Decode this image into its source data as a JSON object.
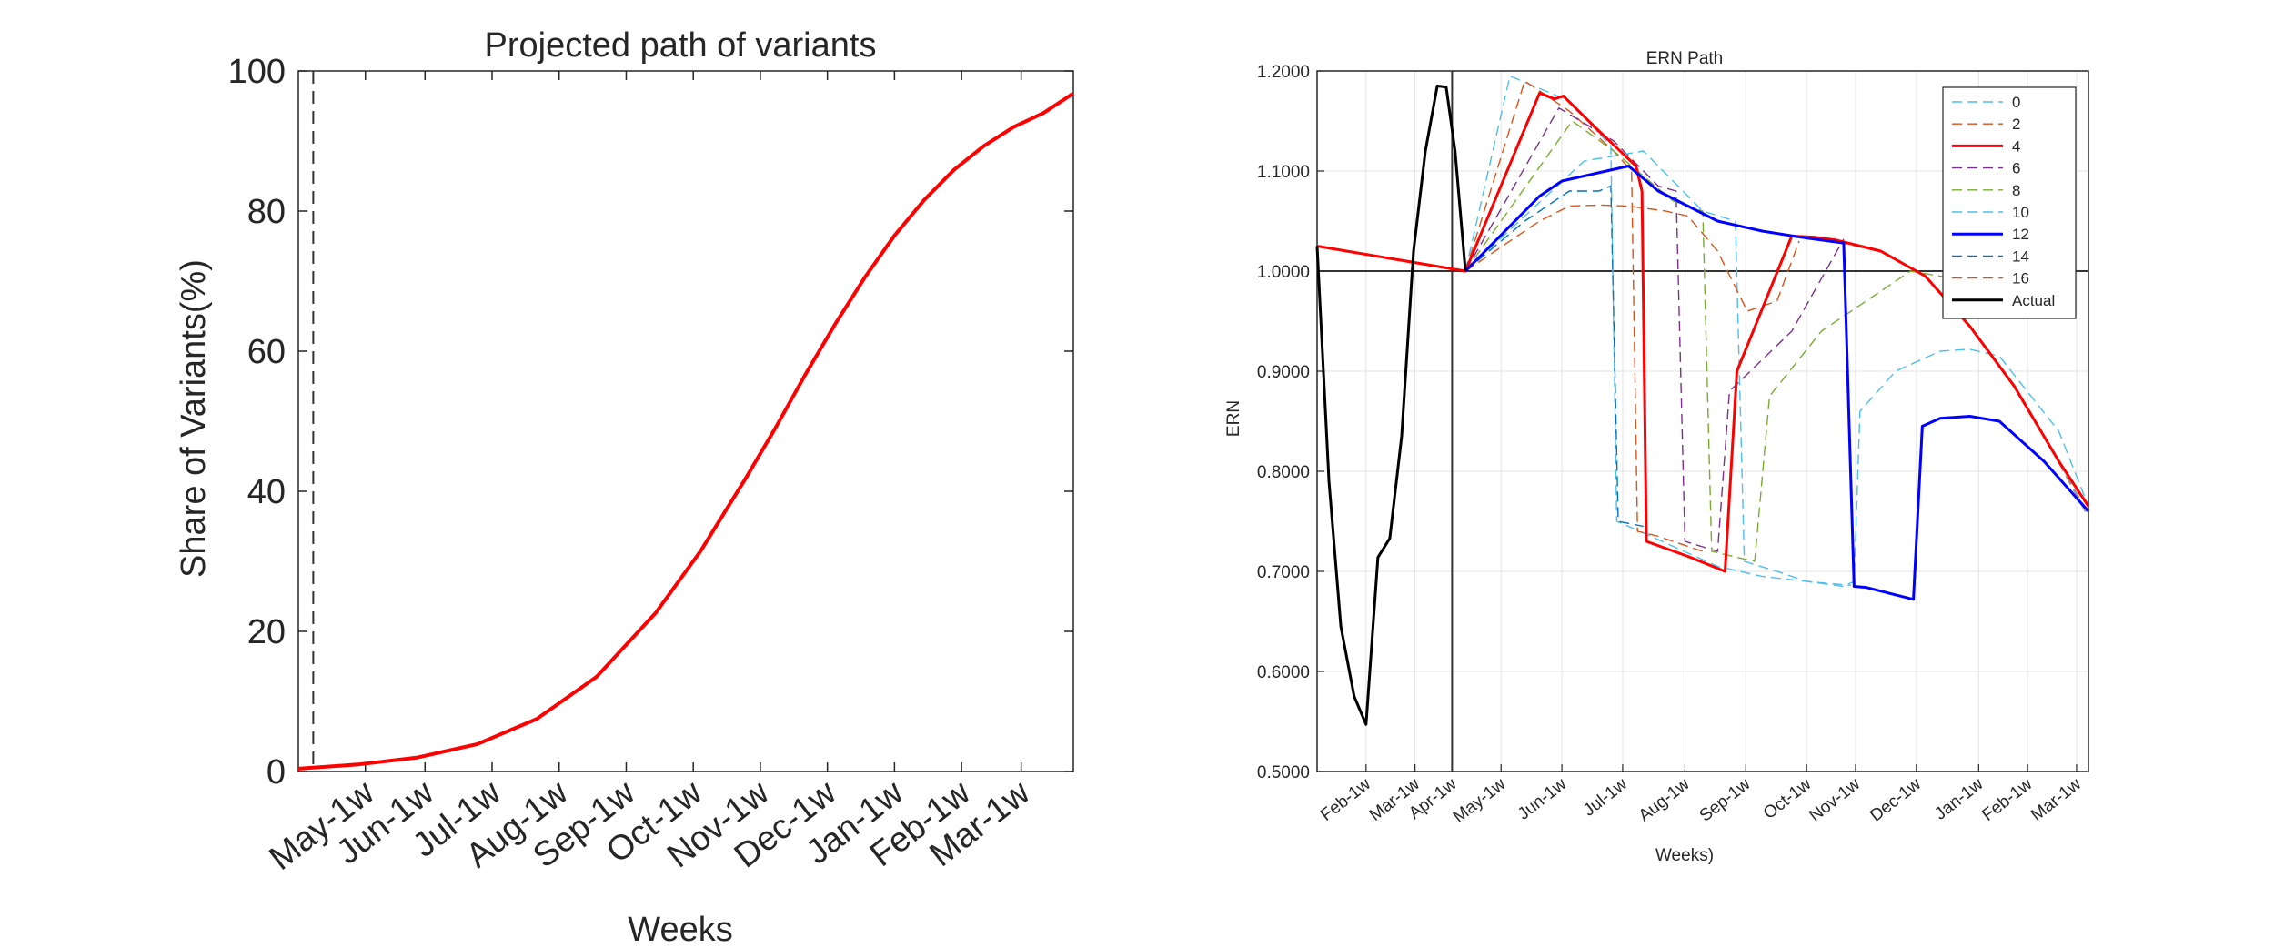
{
  "chart_data": [
    {
      "type": "line",
      "title": "Projected path of variants",
      "xlabel": "Weeks",
      "ylabel": "Share of Variants(%)",
      "ylim": [
        0,
        100
      ],
      "yticks": [
        0,
        20,
        40,
        60,
        80,
        100
      ],
      "xlim": [
        0,
        52
      ],
      "xticks": [
        {
          "x": 4.5,
          "label": "May-1w"
        },
        {
          "x": 8.5,
          "label": "Jun-1w"
        },
        {
          "x": 13,
          "label": "Jul-1w"
        },
        {
          "x": 17.5,
          "label": "Aug-1w"
        },
        {
          "x": 22,
          "label": "Sep-1w"
        },
        {
          "x": 26.5,
          "label": "Oct-1w"
        },
        {
          "x": 31,
          "label": "Nov-1w"
        },
        {
          "x": 35.5,
          "label": "Dec-1w"
        },
        {
          "x": 40,
          "label": "Jan-1w"
        },
        {
          "x": 44.5,
          "label": "Feb-1w"
        },
        {
          "x": 48.5,
          "label": "Mar-1w"
        }
      ],
      "vline_dashed_x": 1,
      "grid": false,
      "series": [
        {
          "color": "#ff0000",
          "x": [
            0,
            4,
            8,
            12,
            16,
            20,
            24,
            27,
            30,
            32,
            34,
            36,
            38,
            40,
            42,
            44,
            46,
            48,
            50,
            52
          ],
          "y": [
            0.4,
            1.0,
            2.0,
            3.9,
            7.5,
            13.5,
            22.7,
            31.5,
            41.8,
            49.0,
            56.6,
            63.8,
            70.5,
            76.5,
            81.6,
            85.9,
            89.3,
            92.0,
            94.0,
            96.8
          ]
        }
      ]
    },
    {
      "type": "line",
      "title": "ERN Path",
      "xlabel": "Weeks)",
      "ylabel": "ERN",
      "ylim": [
        0.5,
        1.2
      ],
      "yticks": [
        "0.5000",
        "0.6000",
        "0.7000",
        "0.8000",
        "0.9000",
        "1.0000",
        "1.1000",
        "1.2000"
      ],
      "xlim": [
        0,
        52
      ],
      "xticks": [
        {
          "x": 3.3,
          "label": "Feb-1w"
        },
        {
          "x": 6.6,
          "label": "Mar-1w"
        },
        {
          "x": 9.1,
          "label": "Apr-1w"
        },
        {
          "x": 12.4,
          "label": "May-1w"
        },
        {
          "x": 16.5,
          "label": "Jun-1w"
        },
        {
          "x": 20.6,
          "label": "Jul-1w"
        },
        {
          "x": 24.8,
          "label": "Aug-1w"
        },
        {
          "x": 28.9,
          "label": "Sep-1w"
        },
        {
          "x": 33.0,
          "label": "Oct-1w"
        },
        {
          "x": 36.3,
          "label": "Nov-1w"
        },
        {
          "x": 40.4,
          "label": "Dec-1w"
        },
        {
          "x": 44.6,
          "label": "Jan-1w"
        },
        {
          "x": 47.9,
          "label": "Feb-1w"
        },
        {
          "x": 51.2,
          "label": "Mar-1w"
        }
      ],
      "hline_y": 1.0,
      "vline_x": 9.1,
      "grid": true,
      "legend_position": "top-right",
      "series": [
        {
          "name": "0",
          "color": "#4dbeee",
          "style": "dashed",
          "x": [
            10,
            13,
            17,
            19.8,
            20.2,
            21,
            24,
            27,
            30,
            33,
            36
          ],
          "y": [
            1.0,
            1.195,
            1.17,
            1.125,
            0.75,
            0.745,
            0.725,
            0.705,
            0.695,
            0.69,
            0.686
          ]
        },
        {
          "name": "2",
          "color": "#d95319",
          "style": "dashed",
          "x": [
            10,
            14,
            17,
            20,
            21.2,
            21.6,
            23,
            26
          ],
          "y": [
            1.0,
            1.19,
            1.16,
            1.12,
            1.1,
            0.74,
            0.735,
            0.72
          ]
        },
        {
          "name": "4",
          "color": "#ff0000",
          "style": "solid",
          "width": 3,
          "x": [
            0,
            10,
            15,
            16,
            16.6,
            19,
            21.5,
            21.9,
            22.2,
            25,
            27.5,
            28.3,
            32,
            33.5,
            35,
            38,
            41,
            44,
            47,
            50,
            52
          ],
          "y": [
            1.025,
            1.0,
            1.178,
            1.172,
            1.175,
            1.14,
            1.105,
            1.08,
            0.73,
            0.715,
            0.7,
            0.9,
            1.035,
            1.034,
            1.031,
            1.02,
            0.995,
            0.945,
            0.885,
            0.81,
            0.765
          ]
        },
        {
          "name": "6",
          "color": "#7e2f8e",
          "style": "dashed",
          "x": [
            10,
            16.3,
            20,
            23,
            24.2,
            24.8,
            27,
            27.8,
            32,
            35.5
          ],
          "y": [
            1.0,
            1.163,
            1.13,
            1.085,
            1.08,
            0.73,
            0.72,
            0.88,
            0.94,
            1.032
          ]
        },
        {
          "name": "8",
          "color": "#77ac30",
          "style": "dashed",
          "x": [
            10,
            17.2,
            20,
            24,
            26,
            26.6,
            29.5,
            30.5,
            34,
            40,
            44
          ],
          "y": [
            1.0,
            1.15,
            1.12,
            1.07,
            1.06,
            0.72,
            0.71,
            0.875,
            0.94,
            1.0,
            0.99
          ]
        },
        {
          "name": "10",
          "color": "#4dbeee",
          "style": "dashed",
          "x": [
            10,
            18,
            22,
            26,
            28.2,
            28.8,
            31,
            33,
            35.5,
            36.2,
            36.6,
            39,
            42,
            44,
            46,
            50,
            52
          ],
          "y": [
            1.0,
            1.11,
            1.12,
            1.06,
            1.05,
            0.71,
            0.7,
            0.69,
            0.685,
            0.69,
            0.86,
            0.9,
            0.92,
            0.922,
            0.915,
            0.84,
            0.765
          ]
        },
        {
          "name": "12",
          "color": "#0000ff",
          "style": "solid",
          "width": 3,
          "x": [
            10,
            15,
            16.5,
            21,
            23,
            27,
            30,
            33,
            35.5,
            36.2,
            37,
            40.2,
            40.8,
            42,
            44,
            46,
            49,
            52
          ],
          "y": [
            1.0,
            1.075,
            1.09,
            1.105,
            1.08,
            1.05,
            1.04,
            1.033,
            1.028,
            0.685,
            0.684,
            0.672,
            0.845,
            0.853,
            0.855,
            0.85,
            0.81,
            0.76
          ]
        },
        {
          "name": "14",
          "color": "#0072bd",
          "style": "dashed",
          "x": [
            10,
            14,
            17,
            19,
            19.8,
            20.3,
            22
          ],
          "y": [
            1.0,
            1.05,
            1.08,
            1.08,
            1.085,
            0.75,
            0.745
          ]
        },
        {
          "name": "16",
          "color": "#d95319",
          "style": "dashed",
          "x": [
            10,
            15,
            17,
            19,
            21,
            23.5,
            25,
            27,
            29,
            31,
            32.5
          ],
          "y": [
            1.0,
            1.05,
            1.065,
            1.066,
            1.065,
            1.06,
            1.055,
            1.02,
            0.96,
            0.97,
            1.03
          ]
        },
        {
          "name": "Actual",
          "color": "#000000",
          "style": "solid",
          "width": 3,
          "x": [
            0,
            0.8,
            1.6,
            2.5,
            3.3,
            4.1,
            4.9,
            5.7,
            6.5,
            7.3,
            8.1,
            8.7,
            9.3,
            10
          ],
          "y": [
            1.025,
            0.79,
            0.645,
            0.575,
            0.547,
            0.714,
            0.733,
            0.835,
            1.02,
            1.12,
            1.185,
            1.184,
            1.12,
            1.0
          ]
        }
      ],
      "extra_series": [
        {
          "color": "#999999",
          "style": "dashed",
          "width": 3,
          "x": [
            32,
            35,
            38,
            41,
            44,
            47,
            50,
            52
          ],
          "y": [
            1.035,
            1.03,
            1.02,
            0.995,
            0.945,
            0.885,
            0.81,
            0.755
          ]
        }
      ]
    }
  ]
}
